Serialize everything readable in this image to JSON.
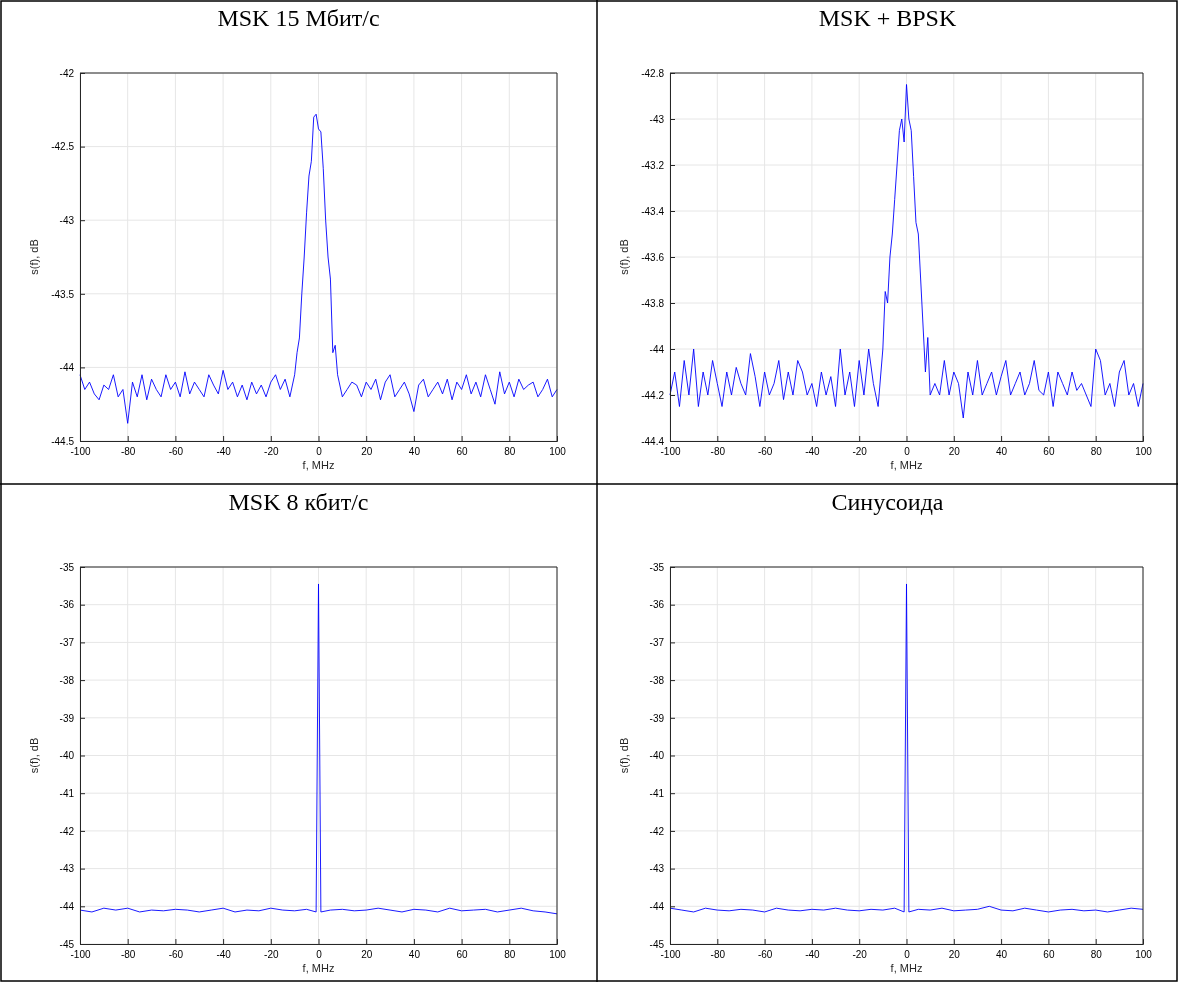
{
  "chart_data": [
    {
      "type": "line",
      "title": "MSK 15 Мбит/с",
      "xlabel": "f, MHz",
      "ylabel": "s(f), dB",
      "xlim": [
        -100,
        100
      ],
      "xticks": [
        -100,
        -80,
        -60,
        -40,
        -20,
        0,
        20,
        40,
        60,
        80,
        100
      ],
      "ylim": [
        -44.5,
        -42
      ],
      "yticks": [
        -44.5,
        -44,
        -43.5,
        -43,
        -42.5,
        -42
      ],
      "grid": true,
      "legend": false,
      "x": [
        -100,
        -98,
        -96,
        -94,
        -92,
        -90,
        -88,
        -86,
        -84,
        -82,
        -80,
        -78,
        -76,
        -74,
        -72,
        -70,
        -68,
        -66,
        -64,
        -62,
        -60,
        -58,
        -56,
        -54,
        -52,
        -50,
        -48,
        -46,
        -44,
        -42,
        -40,
        -38,
        -36,
        -34,
        -32,
        -30,
        -28,
        -26,
        -24,
        -22,
        -20,
        -18,
        -16,
        -14,
        -12,
        -10,
        -9,
        -8,
        -7,
        -6,
        -5,
        -4,
        -3,
        -2,
        -1,
        0,
        1,
        2,
        3,
        4,
        5,
        6,
        7,
        8,
        10,
        12,
        14,
        16,
        18,
        20,
        22,
        24,
        26,
        28,
        30,
        32,
        34,
        36,
        38,
        40,
        42,
        44,
        46,
        48,
        50,
        52,
        54,
        56,
        58,
        60,
        62,
        64,
        66,
        68,
        70,
        72,
        74,
        76,
        78,
        80,
        82,
        84,
        86,
        88,
        90,
        92,
        94,
        96,
        98,
        100
      ],
      "series": [
        {
          "color": "#0000ff",
          "values": [
            -44.05,
            -44.15,
            -44.1,
            -44.18,
            -44.22,
            -44.12,
            -44.15,
            -44.05,
            -44.2,
            -44.15,
            -44.38,
            -44.1,
            -44.2,
            -44.05,
            -44.22,
            -44.08,
            -44.15,
            -44.2,
            -44.05,
            -44.15,
            -44.1,
            -44.2,
            -44.03,
            -44.18,
            -44.1,
            -44.15,
            -44.2,
            -44.05,
            -44.12,
            -44.18,
            -44.02,
            -44.15,
            -44.1,
            -44.2,
            -44.12,
            -44.22,
            -44.1,
            -44.18,
            -44.12,
            -44.2,
            -44.1,
            -44.05,
            -44.15,
            -44.08,
            -44.2,
            -44.05,
            -43.9,
            -43.8,
            -43.5,
            -43.25,
            -42.95,
            -42.7,
            -42.6,
            -42.3,
            -42.28,
            -42.38,
            -42.4,
            -42.65,
            -43.0,
            -43.25,
            -43.4,
            -43.9,
            -43.85,
            -44.05,
            -44.2,
            -44.15,
            -44.1,
            -44.12,
            -44.2,
            -44.1,
            -44.15,
            -44.08,
            -44.22,
            -44.1,
            -44.05,
            -44.2,
            -44.15,
            -44.1,
            -44.18,
            -44.3,
            -44.12,
            -44.08,
            -44.2,
            -44.15,
            -44.1,
            -44.18,
            -44.08,
            -44.22,
            -44.1,
            -44.15,
            -44.05,
            -44.18,
            -44.1,
            -44.2,
            -44.05,
            -44.15,
            -44.25,
            -44.03,
            -44.18,
            -44.1,
            -44.2,
            -44.08,
            -44.15,
            -44.12,
            -44.1,
            -44.2,
            -44.15,
            -44.08,
            -44.2,
            -44.15
          ]
        }
      ]
    },
    {
      "type": "line",
      "title": "MSK + BPSK",
      "xlabel": "f, MHz",
      "ylabel": "s(f), dB",
      "xlim": [
        -100,
        100
      ],
      "xticks": [
        -100,
        -80,
        -60,
        -40,
        -20,
        0,
        20,
        40,
        60,
        80,
        100
      ],
      "ylim": [
        -44.4,
        -42.8
      ],
      "yticks": [
        -44.4,
        -44.2,
        -44,
        -43.8,
        -43.6,
        -43.4,
        -43.2,
        -43,
        -42.8
      ],
      "grid": true,
      "legend": false,
      "x": [
        -100,
        -98,
        -96,
        -94,
        -92,
        -90,
        -88,
        -86,
        -84,
        -82,
        -80,
        -78,
        -76,
        -74,
        -72,
        -70,
        -68,
        -66,
        -64,
        -62,
        -60,
        -58,
        -56,
        -54,
        -52,
        -50,
        -48,
        -46,
        -44,
        -42,
        -40,
        -38,
        -36,
        -34,
        -32,
        -30,
        -28,
        -26,
        -24,
        -22,
        -20,
        -18,
        -16,
        -14,
        -12,
        -10,
        -9,
        -8,
        -7,
        -6,
        -5,
        -4,
        -3,
        -2,
        -1,
        0,
        1,
        2,
        3,
        4,
        5,
        6,
        7,
        8,
        9,
        10,
        12,
        14,
        16,
        18,
        20,
        22,
        24,
        26,
        28,
        30,
        32,
        34,
        36,
        38,
        40,
        42,
        44,
        46,
        48,
        50,
        52,
        54,
        56,
        58,
        60,
        62,
        64,
        66,
        68,
        70,
        72,
        74,
        76,
        78,
        80,
        82,
        84,
        86,
        88,
        90,
        92,
        94,
        96,
        98,
        100
      ],
      "series": [
        {
          "color": "#0000ff",
          "values": [
            -44.2,
            -44.1,
            -44.25,
            -44.05,
            -44.2,
            -44.0,
            -44.25,
            -44.1,
            -44.2,
            -44.05,
            -44.15,
            -44.25,
            -44.1,
            -44.2,
            -44.08,
            -44.15,
            -44.2,
            -44.02,
            -44.12,
            -44.25,
            -44.1,
            -44.2,
            -44.15,
            -44.05,
            -44.22,
            -44.1,
            -44.2,
            -44.05,
            -44.1,
            -44.2,
            -44.15,
            -44.25,
            -44.1,
            -44.2,
            -44.12,
            -44.25,
            -44.0,
            -44.2,
            -44.1,
            -44.25,
            -44.05,
            -44.2,
            -44.0,
            -44.15,
            -44.25,
            -44.0,
            -43.75,
            -43.8,
            -43.6,
            -43.5,
            -43.35,
            -43.2,
            -43.05,
            -43.0,
            -43.1,
            -42.85,
            -43.0,
            -43.05,
            -43.25,
            -43.45,
            -43.5,
            -43.7,
            -43.9,
            -44.1,
            -43.95,
            -44.2,
            -44.15,
            -44.2,
            -44.05,
            -44.2,
            -44.1,
            -44.15,
            -44.3,
            -44.1,
            -44.2,
            -44.05,
            -44.2,
            -44.15,
            -44.1,
            -44.2,
            -44.12,
            -44.05,
            -44.2,
            -44.15,
            -44.1,
            -44.2,
            -44.15,
            -44.05,
            -44.18,
            -44.2,
            -44.1,
            -44.25,
            -44.1,
            -44.15,
            -44.2,
            -44.1,
            -44.18,
            -44.15,
            -44.2,
            -44.25,
            -44.0,
            -44.05,
            -44.2,
            -44.15,
            -44.25,
            -44.1,
            -44.05,
            -44.2,
            -44.15,
            -44.25,
            -44.15
          ]
        }
      ]
    },
    {
      "type": "line",
      "title": "MSK 8 кбит/с",
      "xlabel": "f, MHz",
      "ylabel": "s(f), dB",
      "xlim": [
        -100,
        100
      ],
      "xticks": [
        -100,
        -80,
        -60,
        -40,
        -20,
        0,
        20,
        40,
        60,
        80,
        100
      ],
      "ylim": [
        -45,
        -35
      ],
      "yticks": [
        -45,
        -44,
        -43,
        -42,
        -41,
        -40,
        -39,
        -38,
        -37,
        -36,
        -35
      ],
      "grid": true,
      "legend": false,
      "x": [
        -100,
        -95,
        -90,
        -85,
        -80,
        -75,
        -70,
        -65,
        -60,
        -55,
        -50,
        -45,
        -40,
        -35,
        -30,
        -25,
        -20,
        -15,
        -10,
        -5,
        -1,
        0,
        1,
        5,
        10,
        15,
        20,
        25,
        30,
        35,
        40,
        45,
        50,
        55,
        60,
        65,
        70,
        75,
        80,
        85,
        90,
        95,
        100
      ],
      "series": [
        {
          "color": "#0000ff",
          "values": [
            -44.1,
            -44.15,
            -44.05,
            -44.1,
            -44.05,
            -44.15,
            -44.1,
            -44.12,
            -44.08,
            -44.1,
            -44.15,
            -44.1,
            -44.05,
            -44.15,
            -44.1,
            -44.12,
            -44.05,
            -44.1,
            -44.12,
            -44.08,
            -44.15,
            -35.45,
            -44.15,
            -44.1,
            -44.08,
            -44.12,
            -44.1,
            -44.05,
            -44.1,
            -44.15,
            -44.08,
            -44.1,
            -44.15,
            -44.05,
            -44.12,
            -44.1,
            -44.08,
            -44.15,
            -44.1,
            -44.05,
            -44.12,
            -44.15,
            -44.2
          ]
        }
      ]
    },
    {
      "type": "line",
      "title": "Синусоида",
      "xlabel": "f, MHz",
      "ylabel": "s(f), dB",
      "xlim": [
        -100,
        100
      ],
      "xticks": [
        -100,
        -80,
        -60,
        -40,
        -20,
        0,
        20,
        40,
        60,
        80,
        100
      ],
      "ylim": [
        -45,
        -35
      ],
      "yticks": [
        -45,
        -44,
        -43,
        -42,
        -41,
        -40,
        -39,
        -38,
        -37,
        -36,
        -35
      ],
      "grid": true,
      "legend": false,
      "x": [
        -100,
        -95,
        -90,
        -85,
        -80,
        -75,
        -70,
        -65,
        -60,
        -55,
        -50,
        -45,
        -40,
        -35,
        -30,
        -25,
        -20,
        -15,
        -10,
        -5,
        -1,
        0,
        1,
        5,
        10,
        15,
        20,
        25,
        30,
        35,
        40,
        45,
        50,
        55,
        60,
        65,
        70,
        75,
        80,
        85,
        90,
        95,
        100
      ],
      "series": [
        {
          "color": "#0000ff",
          "values": [
            -44.05,
            -44.1,
            -44.15,
            -44.05,
            -44.1,
            -44.12,
            -44.08,
            -44.1,
            -44.15,
            -44.05,
            -44.1,
            -44.12,
            -44.08,
            -44.1,
            -44.05,
            -44.1,
            -44.12,
            -44.08,
            -44.1,
            -44.05,
            -44.15,
            -35.45,
            -44.15,
            -44.08,
            -44.1,
            -44.05,
            -44.12,
            -44.1,
            -44.08,
            -44.0,
            -44.1,
            -44.12,
            -44.05,
            -44.1,
            -44.15,
            -44.1,
            -44.08,
            -44.12,
            -44.1,
            -44.15,
            -44.1,
            -44.05,
            -44.08
          ]
        }
      ]
    }
  ]
}
